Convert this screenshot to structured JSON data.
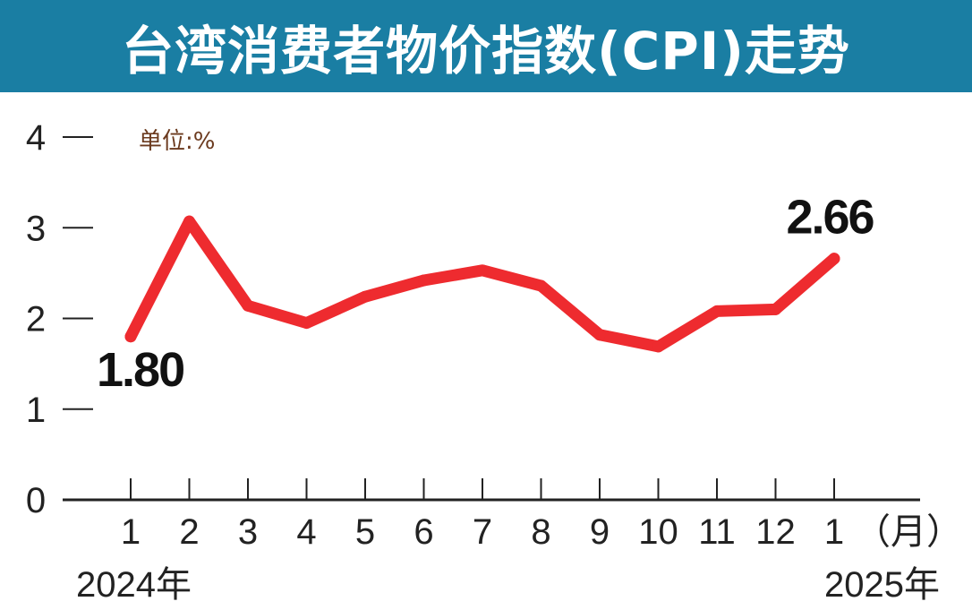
{
  "header": {
    "title": "台湾消费者物价指数(CPI)走势"
  },
  "chart_data": {
    "type": "line",
    "unit_label": "单位:%",
    "x_tick_labels": [
      "1",
      "2",
      "3",
      "4",
      "5",
      "6",
      "7",
      "8",
      "9",
      "10",
      "11",
      "12",
      "1"
    ],
    "x_suffix_label": "（月）",
    "year_labels": [
      "2024年",
      "2025年"
    ],
    "y_ticks": [
      "0",
      "1",
      "2",
      "3",
      "4"
    ],
    "ylim": [
      0,
      4
    ],
    "series": [
      {
        "values": [
          1.8,
          3.07,
          2.14,
          1.95,
          2.24,
          2.42,
          2.53,
          2.36,
          1.82,
          1.69,
          2.08,
          2.1,
          2.66
        ],
        "color": "#ee2b2f"
      }
    ],
    "annotations": [
      {
        "index": 0,
        "text": "1.80"
      },
      {
        "index": 12,
        "text": "2.66"
      }
    ],
    "grid": false,
    "legend": "none"
  }
}
